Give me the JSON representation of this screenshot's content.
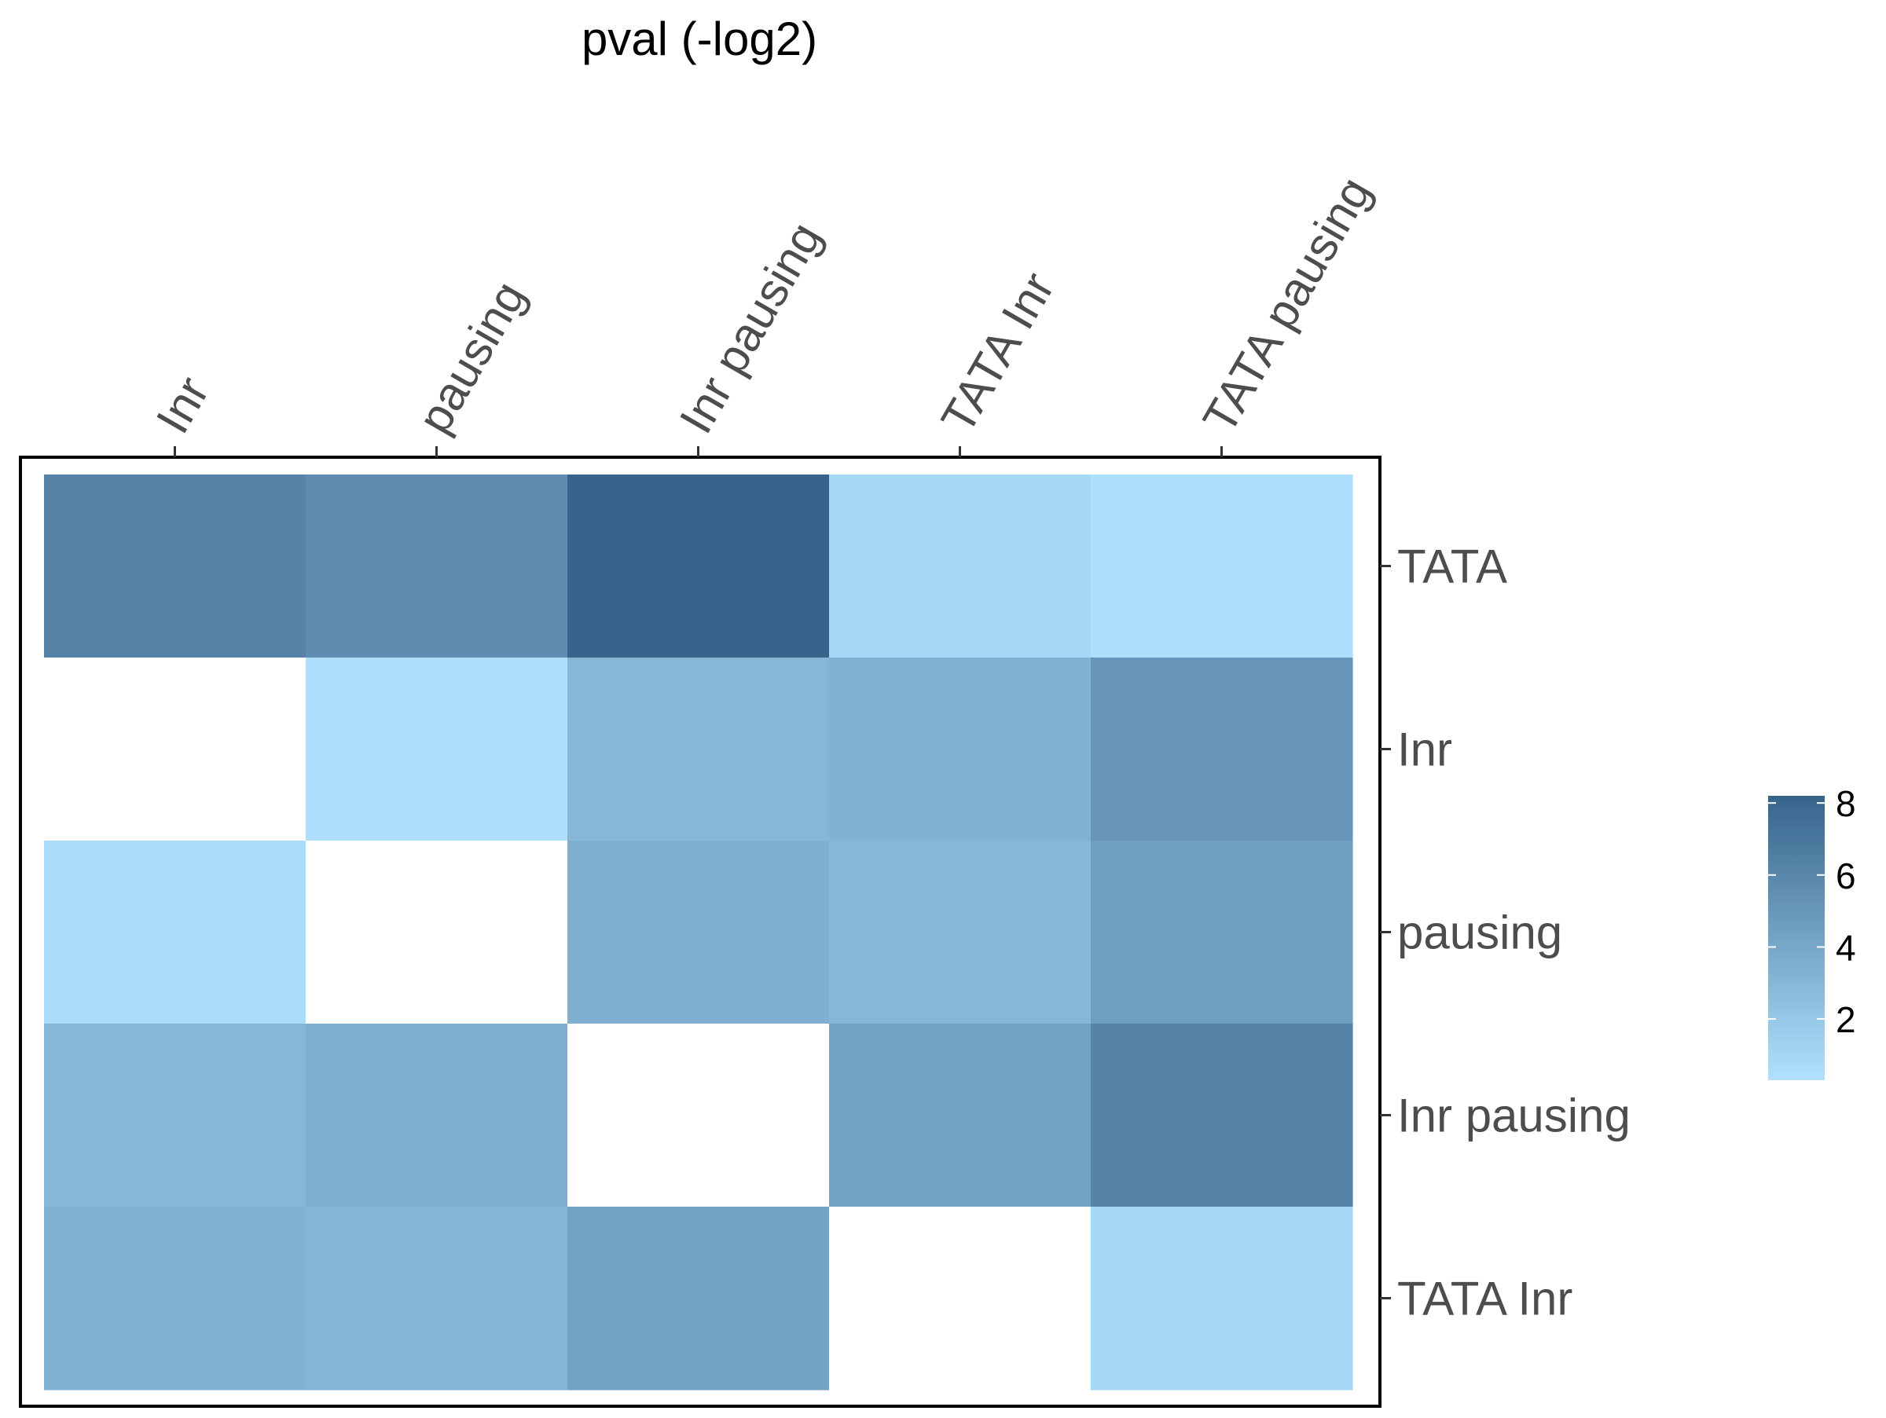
{
  "chart_data": {
    "type": "heatmap",
    "title": "pval (-log2)",
    "x_categories": [
      "Inr",
      "pausing",
      "Inr pausing",
      "TATA Inr",
      "TATA pausing"
    ],
    "y_categories": [
      "TATA",
      "Inr",
      "pausing",
      "Inr pausing",
      "TATA Inr"
    ],
    "values": [
      [
        6.2,
        5.6,
        8.2,
        0.9,
        0.4
      ],
      [
        null,
        0.4,
        3.0,
        3.3,
        5.1
      ],
      [
        0.6,
        null,
        3.5,
        3.0,
        4.5
      ],
      [
        3.0,
        3.6,
        null,
        4.3,
        6.2
      ],
      [
        3.3,
        3.1,
        4.3,
        null,
        1.0
      ]
    ],
    "colorbar": {
      "min": 0.3,
      "max": 8.2,
      "ticks": [
        2,
        4,
        6,
        8
      ],
      "low_color": "#b0e2ff",
      "high_color": "#36648b"
    },
    "missing_color": "#ffffff",
    "x_axis_position": "top",
    "y_axis_position": "right",
    "legend_position": "right",
    "grid": false
  }
}
